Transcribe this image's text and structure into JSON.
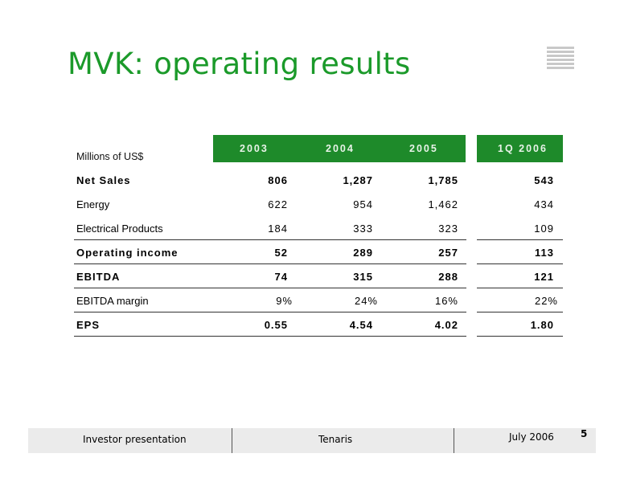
{
  "title": "MVK: operating results",
  "units_label": "Millions of US$",
  "columns": [
    "2003",
    "2004",
    "2005",
    "1Q 2006"
  ],
  "rows": [
    {
      "label": "Net Sales",
      "values": [
        "806",
        "1,287",
        "1,785",
        "543"
      ]
    },
    {
      "label": "Energy",
      "values": [
        "622",
        "954",
        "1,462",
        "434"
      ]
    },
    {
      "label": "Electrical Products",
      "values": [
        "184",
        "333",
        "323",
        "109"
      ]
    },
    {
      "label": "Operating income",
      "values": [
        "52",
        "289",
        "257",
        "113"
      ]
    },
    {
      "label": "EBITDA",
      "values": [
        "74",
        "315",
        "288",
        "121"
      ]
    },
    {
      "label": "EBITDA margin",
      "values": [
        "9%",
        "24%",
        "16%",
        "22%"
      ]
    },
    {
      "label": "EPS",
      "values": [
        "0.55",
        "4.54",
        "4.02",
        "1.80"
      ]
    }
  ],
  "footer": {
    "left": "Investor presentation",
    "center": "Tenaris",
    "right": "July 2006",
    "page": "5"
  },
  "colors": {
    "accent": "#1b9a2a",
    "header_bg": "#1e8a2a",
    "footer_bg": "#ebebeb"
  },
  "logo_icon": "stripes-logo-icon"
}
